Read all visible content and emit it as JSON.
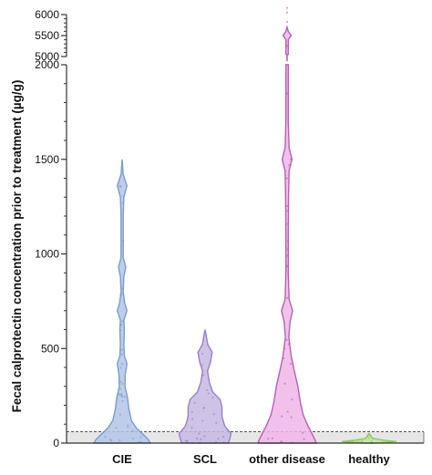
{
  "chart_data": {
    "type": "violin",
    "ylabel": "Fecal calprotectin concentration prior to treatment (µg/g)",
    "y_axis": {
      "lower_segment": {
        "range": [
          0,
          2000
        ],
        "ticks": [
          0,
          500,
          1000,
          1500,
          2000
        ],
        "tick_labels": [
          "0",
          "500",
          "1000",
          "1500",
          "2000"
        ]
      },
      "upper_segment": {
        "range": [
          5000,
          6000
        ],
        "ticks": [
          5000,
          5500,
          6000
        ],
        "tick_labels": [
          "5000",
          "5500",
          "6000"
        ]
      },
      "broken": true
    },
    "reference_line": {
      "value": 60,
      "style": "dashed",
      "shaded_below": true
    },
    "categories": [
      "CIE",
      "SCL",
      "other disease",
      "healthy"
    ],
    "series": [
      {
        "category": "CIE",
        "color": "#7b9bcc",
        "fill": "#b3c6e6",
        "min": 0,
        "max": 1500,
        "density": [
          [
            0,
            1.0
          ],
          [
            20,
            0.92
          ],
          [
            45,
            0.75
          ],
          [
            80,
            0.5
          ],
          [
            120,
            0.33
          ],
          [
            180,
            0.24
          ],
          [
            240,
            0.19
          ],
          [
            300,
            0.1
          ],
          [
            360,
            0.11
          ],
          [
            420,
            0.17
          ],
          [
            460,
            0.08
          ],
          [
            520,
            0.06
          ],
          [
            600,
            0.08
          ],
          [
            650,
            0.06
          ],
          [
            700,
            0.17
          ],
          [
            740,
            0.09
          ],
          [
            800,
            0.04
          ],
          [
            880,
            0.06
          ],
          [
            930,
            0.13
          ],
          [
            980,
            0.04
          ],
          [
            1100,
            0.04
          ],
          [
            1200,
            0.04
          ],
          [
            1300,
            0.06
          ],
          [
            1360,
            0.17
          ],
          [
            1420,
            0.04
          ],
          [
            1500,
            0.0
          ]
        ]
      },
      {
        "category": "SCL",
        "color": "#9a80c8",
        "fill": "#c6b7e3",
        "min": 0,
        "max": 600,
        "density": [
          [
            0,
            0.85
          ],
          [
            20,
            0.9
          ],
          [
            50,
            0.95
          ],
          [
            90,
            0.72
          ],
          [
            140,
            0.62
          ],
          [
            190,
            0.62
          ],
          [
            230,
            0.55
          ],
          [
            270,
            0.28
          ],
          [
            320,
            0.16
          ],
          [
            380,
            0.09
          ],
          [
            430,
            0.2
          ],
          [
            480,
            0.26
          ],
          [
            520,
            0.1
          ],
          [
            570,
            0.04
          ],
          [
            600,
            0.0
          ]
        ]
      },
      {
        "category": "other disease",
        "color": "#b65fb8",
        "fill": "#f0b6e8",
        "min": 0,
        "max": 5700,
        "density": [
          [
            0,
            1.0
          ],
          [
            20,
            0.95
          ],
          [
            50,
            0.85
          ],
          [
            90,
            0.72
          ],
          [
            150,
            0.55
          ],
          [
            220,
            0.45
          ],
          [
            300,
            0.37
          ],
          [
            380,
            0.25
          ],
          [
            460,
            0.14
          ],
          [
            560,
            0.06
          ],
          [
            640,
            0.1
          ],
          [
            700,
            0.19
          ],
          [
            760,
            0.07
          ],
          [
            900,
            0.04
          ],
          [
            1100,
            0.04
          ],
          [
            1300,
            0.05
          ],
          [
            1440,
            0.07
          ],
          [
            1500,
            0.17
          ],
          [
            1560,
            0.07
          ],
          [
            1700,
            0.04
          ],
          [
            2000,
            0.04
          ]
        ],
        "upper_density": [
          [
            5050,
            0.04
          ],
          [
            5400,
            0.04
          ],
          [
            5500,
            0.14
          ],
          [
            5600,
            0.04
          ],
          [
            5700,
            0.0
          ]
        ]
      },
      {
        "category": "healthy",
        "color": "#8fc85e",
        "fill": "#c4e3a3",
        "min": 0,
        "max": 50,
        "density": [
          [
            0,
            0.22
          ],
          [
            8,
            1.0
          ],
          [
            15,
            0.55
          ],
          [
            25,
            0.12
          ],
          [
            40,
            0.06
          ],
          [
            50,
            0.0
          ]
        ]
      }
    ]
  }
}
